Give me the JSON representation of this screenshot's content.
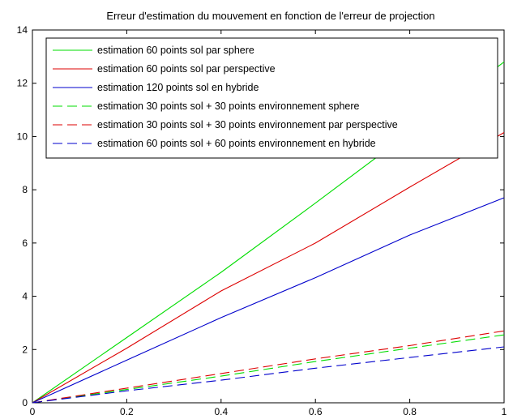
{
  "chart_data": {
    "type": "line",
    "title": "Erreur d'estimation du mouvement en fonction de l'erreur de projection",
    "xlabel": "",
    "ylabel": "",
    "xlim": [
      0,
      1
    ],
    "ylim": [
      0,
      14
    ],
    "xticks": [
      0,
      0.2,
      0.4,
      0.6,
      0.8,
      1
    ],
    "xtick_labels": [
      "0",
      "0.2",
      "0.4",
      "0.6",
      "0.8",
      "1"
    ],
    "yticks": [
      0,
      2,
      4,
      6,
      8,
      10,
      12,
      14
    ],
    "ytick_labels": [
      "0",
      "2",
      "4",
      "6",
      "8",
      "10",
      "12",
      "14"
    ],
    "grid": false,
    "legend_position": "top-left",
    "x": [
      0,
      0.2,
      0.4,
      0.6,
      0.8,
      1
    ],
    "series": [
      {
        "name": "estimation 60 points sol par sphere",
        "color": "#00dd00",
        "dash": "solid",
        "values": [
          0,
          2.45,
          4.9,
          7.5,
          10.15,
          12.8
        ]
      },
      {
        "name": "estimation 60 points sol par perspective",
        "color": "#dd0000",
        "dash": "solid",
        "values": [
          0,
          2.05,
          4.2,
          6.0,
          8.1,
          10.15
        ]
      },
      {
        "name": "estimation 120 points sol en hybride",
        "color": "#0000cc",
        "dash": "solid",
        "values": [
          0,
          1.6,
          3.2,
          4.7,
          6.3,
          7.7
        ]
      },
      {
        "name": "estimation 30 points sol + 30 points environnement sphere",
        "color": "#00dd00",
        "dash": "dashed",
        "values": [
          0,
          0.5,
          1.0,
          1.55,
          2.05,
          2.55
        ]
      },
      {
        "name": "estimation 30 points sol + 30 points environnement par perspective",
        "color": "#dd0000",
        "dash": "dashed",
        "values": [
          0,
          0.55,
          1.1,
          1.65,
          2.15,
          2.7
        ]
      },
      {
        "name": "estimation 60 points sol + 60 points environnement en hybride",
        "color": "#0000cc",
        "dash": "dashed",
        "values": [
          0,
          0.45,
          0.85,
          1.3,
          1.7,
          2.1
        ]
      }
    ]
  }
}
